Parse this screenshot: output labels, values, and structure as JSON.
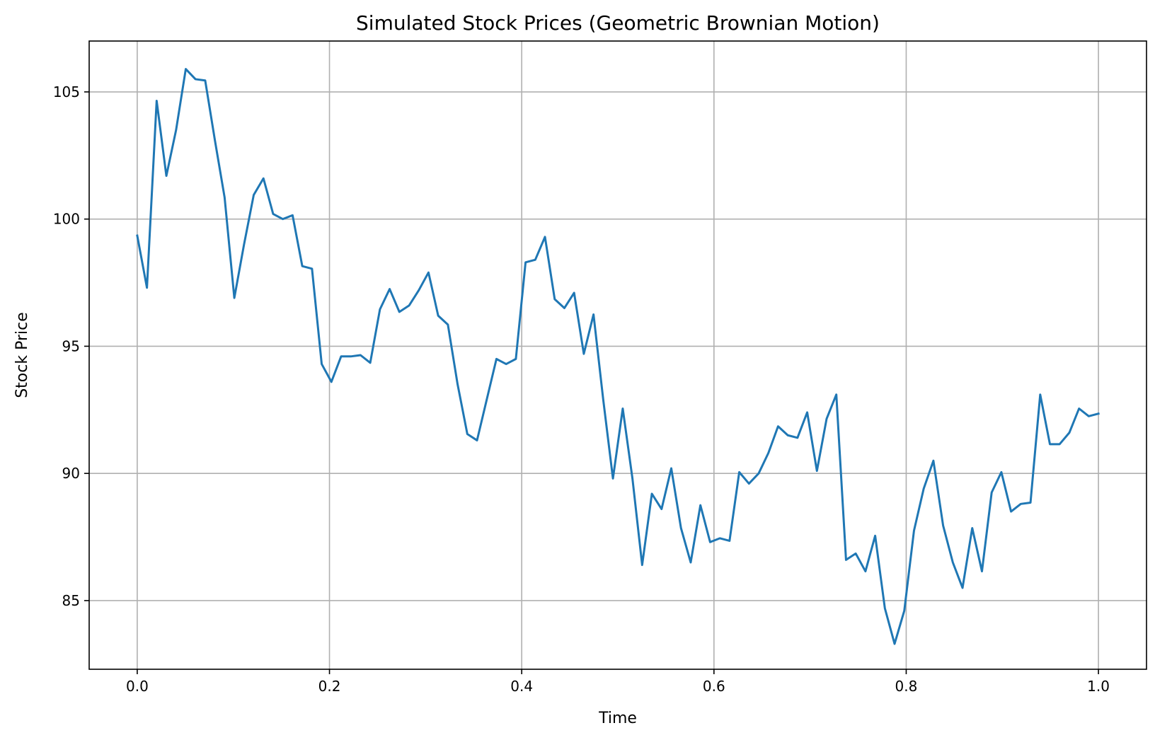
{
  "chart_data": {
    "type": "line",
    "title": "Simulated Stock Prices (Geometric Brownian Motion)",
    "xlabel": "Time",
    "ylabel": "Stock Price",
    "xlim": [
      -0.05,
      1.05
    ],
    "ylim": [
      82.3,
      107.0
    ],
    "xticks": [
      0.0,
      0.2,
      0.4,
      0.6,
      0.8,
      1.0
    ],
    "xtick_labels": [
      "0.0",
      "0.2",
      "0.4",
      "0.6",
      "0.8",
      "1.0"
    ],
    "yticks": [
      85,
      90,
      95,
      100,
      105
    ],
    "ytick_labels": [
      "85",
      "90",
      "95",
      "100",
      "105"
    ],
    "grid": true,
    "line_color": "#1f77b4",
    "series": [
      {
        "x": [
          0.0,
          0.0101,
          0.0202,
          0.0303,
          0.0404,
          0.0505,
          0.0606,
          0.0707,
          0.0808,
          0.0909,
          0.101,
          0.1111,
          0.1212,
          0.1313,
          0.1414,
          0.1515,
          0.1616,
          0.1717,
          0.1818,
          0.1919,
          0.202,
          0.2121,
          0.2222,
          0.2323,
          0.2424,
          0.2525,
          0.2626,
          0.2727,
          0.2828,
          0.2929,
          0.303,
          0.3131,
          0.3232,
          0.3333,
          0.3434,
          0.3535,
          0.3636,
          0.3737,
          0.3838,
          0.3939,
          0.404,
          0.4141,
          0.4242,
          0.4343,
          0.4444,
          0.4545,
          0.4646,
          0.4747,
          0.4848,
          0.4949,
          0.5051,
          0.5152,
          0.5253,
          0.5354,
          0.5455,
          0.5556,
          0.5657,
          0.5758,
          0.5859,
          0.596,
          0.6061,
          0.6162,
          0.6263,
          0.6364,
          0.6465,
          0.6566,
          0.6667,
          0.6768,
          0.6869,
          0.697,
          0.7071,
          0.7172,
          0.7273,
          0.7374,
          0.7475,
          0.7576,
          0.7677,
          0.7778,
          0.7879,
          0.798,
          0.8081,
          0.8182,
          0.8283,
          0.8384,
          0.8485,
          0.8586,
          0.8687,
          0.8788,
          0.8889,
          0.899,
          0.9091,
          0.9192,
          0.9293,
          0.9394,
          0.9495,
          0.9596,
          0.9697,
          0.9798,
          0.9899,
          1.0
        ],
        "values": [
          99.35,
          97.3,
          104.65,
          101.7,
          103.5,
          105.9,
          105.5,
          105.45,
          103.1,
          100.85,
          96.9,
          99.0,
          100.95,
          101.6,
          100.2,
          100.0,
          100.15,
          98.15,
          98.05,
          94.3,
          93.6,
          94.6,
          94.6,
          94.65,
          94.35,
          96.45,
          97.25,
          96.35,
          96.6,
          97.2,
          97.9,
          96.2,
          95.85,
          93.5,
          91.55,
          91.3,
          92.9,
          94.5,
          94.3,
          94.5,
          98.3,
          98.4,
          99.3,
          96.85,
          96.5,
          97.1,
          94.7,
          96.25,
          92.9,
          89.8,
          92.55,
          89.8,
          86.4,
          89.2,
          88.6,
          90.2,
          87.85,
          86.5,
          88.75,
          87.3,
          87.45,
          87.35,
          90.05,
          89.6,
          90.0,
          90.8,
          91.85,
          91.5,
          91.4,
          92.4,
          90.1,
          92.15,
          93.1,
          86.6,
          86.85,
          86.15,
          87.55,
          84.7,
          83.3,
          84.6,
          87.75,
          89.4,
          90.5,
          87.95,
          86.5,
          85.5,
          87.85,
          86.15,
          89.25,
          90.05,
          88.5,
          88.8,
          88.85,
          93.1,
          91.15,
          91.15,
          91.6,
          92.55,
          92.25,
          92.35
        ]
      }
    ]
  }
}
